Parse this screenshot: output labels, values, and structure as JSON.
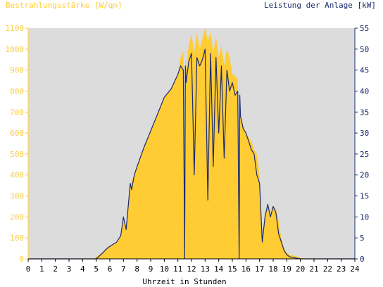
{
  "chart_data": {
    "type": "area",
    "left_axis_label": "Bestrahlungsstärke [W/qm]",
    "right_axis_label": "Leistung der Anlage [kW]",
    "xlabel": "Uhrzeit in Stunden",
    "x_ticks": [
      "0",
      "1",
      "2",
      "3",
      "4",
      "5",
      "6",
      "7",
      "8",
      "9",
      "10",
      "11",
      "12",
      "13",
      "14",
      "15",
      "16",
      "17",
      "18",
      "19",
      "20",
      "21",
      "22",
      "23",
      "24"
    ],
    "y_left_ticks": [
      "0",
      "100",
      "200",
      "300",
      "400",
      "500",
      "600",
      "700",
      "800",
      "900",
      "1000",
      "1100"
    ],
    "y_right_ticks": [
      "0",
      "5",
      "10",
      "15",
      "20",
      "25",
      "30",
      "35",
      "40",
      "45",
      "50",
      "55"
    ],
    "xlim": [
      0,
      24
    ],
    "ylim_left": [
      0,
      1100
    ],
    "ylim_right": [
      0,
      55
    ],
    "grid": false,
    "colors": {
      "background": "#ffffff",
      "plot_area": "#dcdcdc",
      "irradiance": "#ffcc33",
      "power": "#1a2a6e",
      "left_axis_text": "#ffcc33",
      "right_axis_text": "#1a2a6e",
      "axis_text": "#000000"
    },
    "series": [
      {
        "name": "Bestrahlungsstärke [W/qm]",
        "axis": "left",
        "style": "area",
        "x": [
          0,
          4.8,
          5.0,
          5.5,
          5.8,
          6.0,
          6.5,
          6.8,
          7.0,
          7.2,
          7.5,
          7.8,
          8.0,
          8.5,
          9.0,
          9.5,
          10.0,
          10.5,
          11.0,
          11.2,
          11.4,
          11.5,
          11.55,
          11.6,
          11.8,
          12.0,
          12.2,
          12.4,
          12.6,
          12.8,
          13.0,
          13.2,
          13.4,
          13.6,
          13.8,
          14.0,
          14.2,
          14.4,
          14.6,
          14.8,
          15.0,
          15.2,
          15.4,
          15.5,
          15.55,
          15.6,
          15.8,
          16.0,
          16.2,
          16.4,
          16.6,
          16.8,
          17.0,
          17.2,
          17.4,
          17.6,
          17.8,
          18.0,
          18.2,
          18.4,
          18.6,
          18.8,
          19.0,
          19.2,
          19.5,
          19.8,
          20.0,
          20.5,
          24
        ],
        "y": [
          0,
          0,
          10,
          30,
          50,
          60,
          80,
          110,
          200,
          140,
          350,
          400,
          440,
          530,
          610,
          690,
          770,
          810,
          880,
          960,
          990,
          420,
          990,
          900,
          1020,
          1070,
          980,
          1080,
          1000,
          1050,
          1100,
          1040,
          1080,
          980,
          1060,
          960,
          1020,
          920,
          1000,
          960,
          880,
          870,
          860,
          10,
          860,
          680,
          640,
          600,
          580,
          560,
          520,
          500,
          400,
          80,
          200,
          260,
          200,
          250,
          240,
          180,
          100,
          50,
          30,
          20,
          15,
          10,
          5,
          0,
          0
        ]
      },
      {
        "name": "Leistung der Anlage [kW]",
        "axis": "right",
        "style": "line",
        "x": [
          0,
          5.0,
          5.5,
          5.8,
          6.0,
          6.5,
          6.8,
          7.0,
          7.2,
          7.5,
          7.6,
          7.8,
          8.0,
          8.5,
          9.0,
          9.5,
          10.0,
          10.5,
          11.0,
          11.2,
          11.4,
          11.5,
          11.55,
          11.6,
          11.8,
          12.0,
          12.2,
          12.4,
          12.6,
          12.8,
          13.0,
          13.2,
          13.4,
          13.6,
          13.8,
          14.0,
          14.2,
          14.4,
          14.6,
          14.8,
          15.0,
          15.2,
          15.4,
          15.5,
          15.55,
          15.6,
          15.8,
          16.0,
          16.2,
          16.4,
          16.6,
          16.8,
          17.0,
          17.2,
          17.4,
          17.6,
          17.8,
          18.0,
          18.2,
          18.4,
          18.6,
          18.8,
          19.0,
          19.2,
          19.5,
          19.8,
          20.0,
          20.5,
          24
        ],
        "y": [
          0,
          0,
          1.5,
          2.5,
          3.0,
          4.0,
          5.5,
          10.0,
          7.0,
          18.0,
          16.5,
          20.0,
          22.0,
          26.5,
          30.5,
          34.5,
          38.5,
          40.5,
          44.0,
          46.0,
          45.0,
          0,
          46.0,
          42.0,
          47.0,
          49.0,
          20.0,
          48.0,
          46.0,
          47.5,
          50.0,
          14.0,
          49.0,
          22.0,
          48.0,
          30.0,
          46.0,
          24.0,
          45.0,
          40.0,
          42.0,
          39.0,
          40.0,
          0,
          39.0,
          34.0,
          31.0,
          30.0,
          28.0,
          26.0,
          25.0,
          20.0,
          18.0,
          4.0,
          10.0,
          13.0,
          10.0,
          12.5,
          11.0,
          6.0,
          4.0,
          2.0,
          1.0,
          0.5,
          0.3,
          0.1,
          0,
          0,
          0
        ]
      }
    ]
  }
}
